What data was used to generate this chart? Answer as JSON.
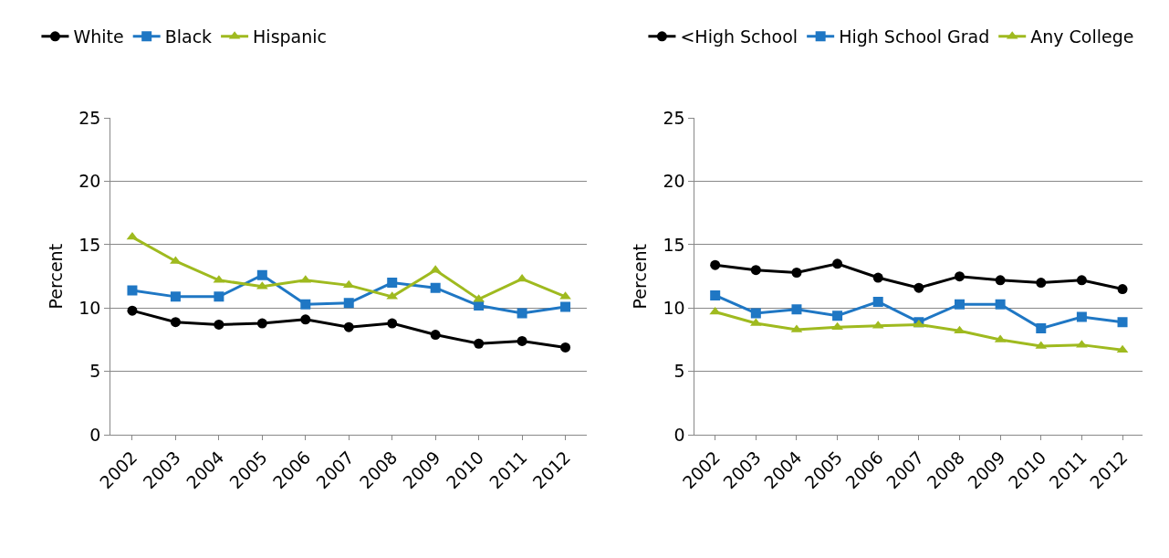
{
  "chart_data": [
    {
      "type": "line",
      "ylabel": "Percent",
      "categories": [
        "2002",
        "2003",
        "2004",
        "2005",
        "2006",
        "2007",
        "2008",
        "2009",
        "2010",
        "2011",
        "2012"
      ],
      "ylim": [
        0,
        25
      ],
      "yticks": [
        0,
        5,
        10,
        15,
        20,
        25
      ],
      "grid": "y",
      "legend": "top",
      "series": [
        {
          "name": "White",
          "color": "#000000",
          "marker": "circle",
          "values": [
            9.8,
            8.9,
            8.7,
            8.8,
            9.1,
            8.5,
            8.8,
            7.9,
            7.2,
            7.4,
            6.9
          ]
        },
        {
          "name": "Black",
          "color": "#1f77c4",
          "marker": "square",
          "values": [
            11.4,
            10.9,
            10.9,
            12.6,
            10.3,
            10.4,
            12.0,
            11.6,
            10.2,
            9.6,
            10.1
          ]
        },
        {
          "name": "Hispanic",
          "color": "#9fba1f",
          "marker": "triangle",
          "values": [
            15.6,
            13.7,
            12.2,
            11.7,
            12.2,
            11.8,
            10.9,
            13.0,
            10.7,
            12.3,
            10.9
          ]
        }
      ]
    },
    {
      "type": "line",
      "ylabel": "Percent",
      "categories": [
        "2002",
        "2003",
        "2004",
        "2005",
        "2006",
        "2007",
        "2008",
        "2009",
        "2010",
        "2011",
        "2012"
      ],
      "ylim": [
        0,
        25
      ],
      "yticks": [
        0,
        5,
        10,
        15,
        20,
        25
      ],
      "grid": "y",
      "legend": "top",
      "series": [
        {
          "name": "<High School",
          "color": "#000000",
          "marker": "circle",
          "values": [
            13.4,
            13.0,
            12.8,
            13.5,
            12.4,
            11.6,
            12.5,
            12.2,
            12.0,
            12.2,
            11.5
          ]
        },
        {
          "name": "High School Grad",
          "color": "#1f77c4",
          "marker": "square",
          "values": [
            11.0,
            9.6,
            9.9,
            9.4,
            10.5,
            8.9,
            10.3,
            10.3,
            8.4,
            9.3,
            8.9
          ]
        },
        {
          "name": "Any College",
          "color": "#9fba1f",
          "marker": "triangle",
          "values": [
            9.7,
            8.8,
            8.3,
            8.5,
            8.6,
            8.7,
            8.2,
            7.5,
            7.0,
            7.1,
            6.7
          ]
        }
      ]
    }
  ]
}
